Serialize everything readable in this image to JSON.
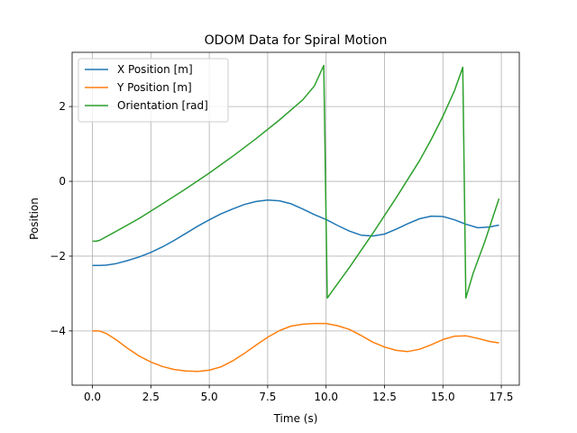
{
  "chart_data": {
    "type": "line",
    "title": "ODOM Data for Spiral Motion",
    "xlabel": "Time (s)",
    "ylabel": "Position",
    "xlim": [
      -0.87,
      18.27
    ],
    "ylim": [
      -5.45,
      3.45
    ],
    "xticks": [
      0.0,
      2.5,
      5.0,
      7.5,
      10.0,
      12.5,
      15.0,
      17.5
    ],
    "xtick_labels": [
      "0.0",
      "2.5",
      "5.0",
      "7.5",
      "10.0",
      "12.5",
      "15.0",
      "17.5"
    ],
    "yticks": [
      -4,
      -2,
      0,
      2
    ],
    "ytick_labels": [
      "−4",
      "−2",
      "0",
      "2"
    ],
    "grid": true,
    "legend_position": "top-left",
    "colors": {
      "x": "#1f77b4",
      "y": "#ff7f0e",
      "orientation": "#2ca02c"
    },
    "series": [
      {
        "name": "X Position [m]",
        "x": [
          0.0,
          0.3,
          0.6,
          1.0,
          1.5,
          2.0,
          2.5,
          3.0,
          3.5,
          4.0,
          4.5,
          5.0,
          5.5,
          6.0,
          6.5,
          7.0,
          7.5,
          8.0,
          8.5,
          9.0,
          9.5,
          10.0,
          10.5,
          11.0,
          11.5,
          12.0,
          12.5,
          13.0,
          13.5,
          14.0,
          14.5,
          15.0,
          15.5,
          16.0,
          16.5,
          17.0,
          17.4
        ],
        "values": [
          -2.25,
          -2.25,
          -2.24,
          -2.2,
          -2.12,
          -2.02,
          -1.9,
          -1.75,
          -1.58,
          -1.39,
          -1.2,
          -1.03,
          -0.87,
          -0.74,
          -0.62,
          -0.54,
          -0.5,
          -0.52,
          -0.6,
          -0.74,
          -0.89,
          -1.02,
          -1.18,
          -1.33,
          -1.44,
          -1.46,
          -1.41,
          -1.28,
          -1.13,
          -1.0,
          -0.93,
          -0.94,
          -1.03,
          -1.15,
          -1.24,
          -1.22,
          -1.17
        ]
      },
      {
        "name": "Y Position [m]",
        "x": [
          0.0,
          0.3,
          0.6,
          1.0,
          1.5,
          2.0,
          2.5,
          3.0,
          3.5,
          4.0,
          4.5,
          5.0,
          5.5,
          6.0,
          6.5,
          7.0,
          7.5,
          8.0,
          8.5,
          9.0,
          9.5,
          10.0,
          10.5,
          11.0,
          11.5,
          12.0,
          12.5,
          13.0,
          13.5,
          14.0,
          14.5,
          15.0,
          15.5,
          16.0,
          16.5,
          17.0,
          17.4
        ],
        "values": [
          -4.0,
          -4.0,
          -4.07,
          -4.23,
          -4.46,
          -4.67,
          -4.83,
          -4.95,
          -5.03,
          -5.07,
          -5.08,
          -5.05,
          -4.96,
          -4.8,
          -4.6,
          -4.38,
          -4.17,
          -3.99,
          -3.87,
          -3.82,
          -3.8,
          -3.8,
          -3.86,
          -3.96,
          -4.12,
          -4.3,
          -4.43,
          -4.52,
          -4.55,
          -4.49,
          -4.37,
          -4.23,
          -4.14,
          -4.13,
          -4.2,
          -4.28,
          -4.32
        ]
      },
      {
        "name": "Orientation [rad]",
        "x": [
          0.0,
          0.15,
          0.3,
          1.0,
          2.0,
          3.0,
          4.0,
          5.0,
          6.0,
          7.0,
          8.0,
          9.0,
          9.5,
          9.9,
          10.05,
          10.3,
          11.0,
          12.0,
          13.0,
          14.0,
          14.5,
          15.0,
          15.5,
          15.85,
          15.98,
          16.3,
          16.8,
          17.4
        ],
        "values": [
          -1.6,
          -1.6,
          -1.58,
          -1.34,
          -0.99,
          -0.6,
          -0.2,
          0.22,
          0.67,
          1.14,
          1.64,
          2.18,
          2.55,
          3.1,
          -3.12,
          -2.9,
          -2.3,
          -1.39,
          -0.44,
          0.55,
          1.12,
          1.74,
          2.43,
          3.05,
          -3.12,
          -2.45,
          -1.6,
          -0.46
        ]
      }
    ]
  }
}
